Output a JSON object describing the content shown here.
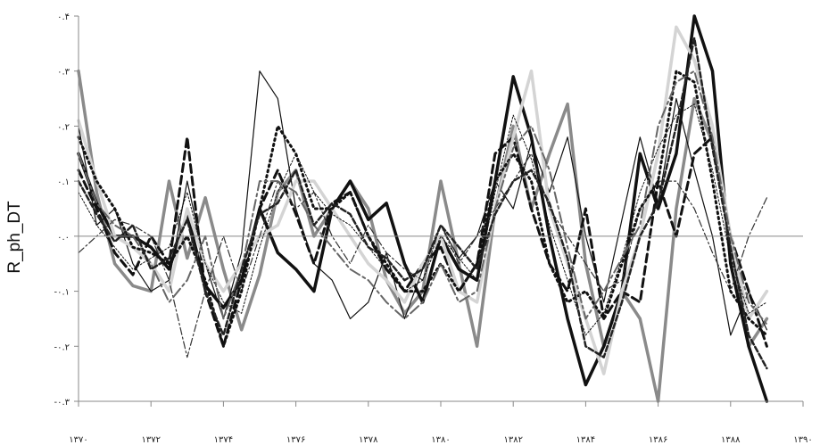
{
  "chart_data": {
    "type": "line",
    "ylabel": "R_ph_DT",
    "xlim": [
      1370,
      1390
    ],
    "ylim": [
      -0.3,
      0.4
    ],
    "x_ticks": [
      "۱۳۷۰",
      "۱۳۷۲",
      "۱۳۷۴",
      "۱۳۷۶",
      "۱۳۷۸",
      "۱۳۸۰",
      "۱۳۸۲",
      "۱۳۸۴",
      "۱۳۸۶",
      "۱۳۸۸",
      "۱۳۹۰"
    ],
    "y_ticks": [
      "-۰.۳",
      "-۰.۲",
      "-۰.۱",
      "۰.۰",
      "۰.۱",
      "۰.۲",
      "۰.۳",
      "۰.۴"
    ],
    "grid": false,
    "zero_line": true,
    "series": [
      {
        "x": [
          1370,
          1370.5,
          1371,
          1371.5,
          1372,
          1372.5,
          1373,
          1373.5,
          1374,
          1374.5,
          1375,
          1375.5,
          1376,
          1376.5,
          1377,
          1377.5,
          1378,
          1378.5,
          1379,
          1379.5,
          1380,
          1380.5,
          1381,
          1381.5,
          1382,
          1382.5,
          1383,
          1383.5,
          1384,
          1384.5,
          1385,
          1385.5,
          1386,
          1386.5,
          1387,
          1387.5,
          1388,
          1388.5,
          1389
        ],
        "y": [
          0.3,
          0.08,
          -0.05,
          -0.09,
          -0.1,
          0.1,
          -0.04,
          0.07,
          -0.06,
          -0.17,
          -0.07,
          0.08,
          0.12,
          0.0,
          0.05,
          0.1,
          0.05,
          -0.08,
          -0.14,
          -0.1,
          0.1,
          -0.05,
          -0.2,
          0.05,
          0.2,
          0.05,
          0.15,
          0.24,
          -0.05,
          -0.2,
          -0.1,
          -0.15,
          -0.3,
          0.05,
          0.25,
          0.17,
          0.0,
          -0.2,
          -0.15
        ],
        "color": "#8a8a8a",
        "width": 3.5,
        "dash": ""
      },
      {
        "x": [
          1370,
          1370.5,
          1371,
          1371.5,
          1372,
          1372.5,
          1373,
          1373.5,
          1374,
          1374.5,
          1375,
          1375.5,
          1376,
          1376.5,
          1377,
          1377.5,
          1378,
          1378.5,
          1379,
          1379.5,
          1380,
          1380.5,
          1381,
          1381.5,
          1382,
          1382.5,
          1383,
          1383.5,
          1384,
          1384.5,
          1385,
          1385.5,
          1386,
          1386.5,
          1387,
          1387.5,
          1388,
          1388.5,
          1389
        ],
        "y": [
          0.15,
          0.06,
          0.0,
          0.0,
          -0.02,
          -0.06,
          0.04,
          -0.09,
          -0.13,
          -0.08,
          0.05,
          -0.03,
          -0.06,
          -0.1,
          0.05,
          0.1,
          0.03,
          0.06,
          -0.05,
          -0.12,
          0.0,
          -0.06,
          -0.08,
          0.1,
          0.29,
          0.18,
          0.0,
          -0.15,
          -0.27,
          -0.2,
          -0.1,
          0.15,
          0.05,
          0.15,
          0.4,
          0.3,
          -0.05,
          -0.2,
          -0.3
        ],
        "color": "#111111",
        "width": 3.5,
        "dash": ""
      },
      {
        "x": [
          1370,
          1370.5,
          1371,
          1371.5,
          1372,
          1372.5,
          1373,
          1373.5,
          1374,
          1374.5,
          1375,
          1375.5,
          1376,
          1376.5,
          1377,
          1377.5,
          1378,
          1378.5,
          1379,
          1379.5,
          1380,
          1380.5,
          1381,
          1381.5,
          1382,
          1382.5,
          1383,
          1383.5,
          1384,
          1384.5,
          1385,
          1385.5,
          1386,
          1386.5,
          1387,
          1387.5,
          1388,
          1388.5,
          1389
        ],
        "y": [
          0.2,
          0.02,
          0.05,
          -0.05,
          -0.1,
          -0.08,
          0.1,
          -0.05,
          -0.15,
          -0.03,
          0.3,
          0.25,
          0.05,
          -0.05,
          -0.08,
          -0.15,
          -0.12,
          -0.03,
          -0.15,
          -0.06,
          0.02,
          -0.04,
          0.0,
          0.1,
          0.05,
          0.17,
          0.08,
          0.18,
          0.0,
          -0.12,
          0.03,
          0.18,
          0.06,
          0.25,
          0.12,
          0.0,
          -0.18,
          -0.1,
          -0.17
        ],
        "color": "#111111",
        "width": 1.2,
        "dash": ""
      },
      {
        "x": [
          1370,
          1370.5,
          1371,
          1371.5,
          1372,
          1372.5,
          1373,
          1373.5,
          1374,
          1374.5,
          1375,
          1375.5,
          1376,
          1376.5,
          1377,
          1377.5,
          1378,
          1378.5,
          1379,
          1379.5,
          1380,
          1380.5,
          1381,
          1381.5,
          1382,
          1382.5,
          1383,
          1383.5,
          1384,
          1384.5,
          1385,
          1385.5,
          1386,
          1386.5,
          1387,
          1387.5,
          1388,
          1388.5,
          1389
        ],
        "y": [
          0.12,
          0.05,
          -0.03,
          -0.07,
          0.0,
          -0.05,
          0.18,
          -0.1,
          -0.2,
          -0.08,
          0.05,
          0.12,
          0.04,
          -0.05,
          0.06,
          0.08,
          0.0,
          -0.06,
          -0.1,
          -0.05,
          -0.02,
          -0.1,
          -0.05,
          0.15,
          0.18,
          0.05,
          -0.05,
          -0.1,
          0.05,
          -0.15,
          -0.1,
          -0.12,
          0.1,
          0.0,
          0.15,
          0.18,
          0.0,
          -0.1,
          -0.2
        ],
        "color": "#111111",
        "width": 3.0,
        "dash": "9,5"
      },
      {
        "x": [
          1370,
          1370.5,
          1371,
          1371.5,
          1372,
          1372.5,
          1373,
          1373.5,
          1374,
          1374.5,
          1375,
          1375.5,
          1376,
          1376.5,
          1377,
          1377.5,
          1378,
          1378.5,
          1379,
          1379.5,
          1380,
          1380.5,
          1381,
          1381.5,
          1382,
          1382.5,
          1383,
          1383.5,
          1384,
          1384.5,
          1385,
          1385.5,
          1386,
          1386.5,
          1387,
          1387.5,
          1388,
          1388.5,
          1389
        ],
        "y": [
          0.21,
          0.1,
          0.0,
          -0.02,
          -0.05,
          -0.1,
          0.05,
          -0.05,
          -0.1,
          -0.05,
          0.0,
          0.02,
          0.1,
          0.1,
          0.05,
          0.0,
          -0.05,
          -0.08,
          -0.12,
          -0.05,
          0.0,
          -0.1,
          -0.12,
          0.05,
          0.18,
          0.3,
          0.05,
          -0.05,
          -0.15,
          -0.25,
          -0.1,
          0.0,
          0.15,
          0.38,
          0.32,
          0.2,
          0.0,
          -0.15,
          -0.1
        ],
        "color": "#d4d4d4",
        "width": 3.5,
        "dash": ""
      },
      {
        "x": [
          1370,
          1370.5,
          1371,
          1371.5,
          1372,
          1372.5,
          1373,
          1373.5,
          1374,
          1374.5,
          1375,
          1375.5,
          1376,
          1376.5,
          1377,
          1377.5,
          1378,
          1378.5,
          1379,
          1379.5,
          1380,
          1380.5,
          1381,
          1381.5,
          1382,
          1382.5,
          1383,
          1383.5,
          1384,
          1384.5,
          1385,
          1385.5,
          1386,
          1386.5,
          1387,
          1387.5,
          1388,
          1388.5,
          1389
        ],
        "y": [
          -0.03,
          0.0,
          0.03,
          0.02,
          0.0,
          -0.08,
          -0.22,
          -0.1,
          0.0,
          -0.1,
          0.0,
          0.1,
          0.05,
          0.08,
          0.0,
          -0.05,
          0.02,
          -0.03,
          -0.06,
          -0.08,
          0.02,
          -0.05,
          0.0,
          0.05,
          0.1,
          0.15,
          0.05,
          0.0,
          -0.05,
          -0.1,
          -0.08,
          0.05,
          0.1,
          0.1,
          0.05,
          -0.03,
          -0.1,
          0.0,
          0.07
        ],
        "color": "#333333",
        "width": 1.2,
        "dash": "8,3,2,3"
      },
      {
        "x": [
          1370,
          1370.5,
          1371,
          1371.5,
          1372,
          1372.5,
          1373,
          1373.5,
          1374,
          1374.5,
          1375,
          1375.5,
          1376,
          1376.5,
          1377,
          1377.5,
          1378,
          1378.5,
          1379,
          1379.5,
          1380,
          1380.5,
          1381,
          1381.5,
          1382,
          1382.5,
          1383,
          1383.5,
          1384,
          1384.5,
          1385,
          1385.5,
          1386,
          1386.5,
          1387,
          1387.5,
          1388,
          1388.5,
          1389
        ],
        "y": [
          0.18,
          0.1,
          0.05,
          -0.02,
          -0.03,
          -0.05,
          0.0,
          -0.08,
          -0.2,
          -0.1,
          0.05,
          0.2,
          0.15,
          0.05,
          0.05,
          0.08,
          0.0,
          -0.05,
          -0.1,
          -0.1,
          -0.05,
          -0.1,
          -0.05,
          0.1,
          0.15,
          0.1,
          -0.05,
          -0.12,
          -0.1,
          -0.15,
          -0.05,
          0.05,
          0.1,
          0.3,
          0.28,
          0.1,
          -0.1,
          -0.15,
          -0.18
        ],
        "color": "#111111",
        "width": 3.0,
        "dash": "2,4"
      },
      {
        "x": [
          1370,
          1370.5,
          1371,
          1371.5,
          1372,
          1372.5,
          1373,
          1373.5,
          1374,
          1374.5,
          1375,
          1375.5,
          1376,
          1376.5,
          1377,
          1377.5,
          1378,
          1378.5,
          1379,
          1379.5,
          1380,
          1380.5,
          1381,
          1381.5,
          1382,
          1382.5,
          1383,
          1383.5,
          1384,
          1384.5,
          1385,
          1385.5,
          1386,
          1386.5,
          1387,
          1387.5,
          1388,
          1388.5,
          1389
        ],
        "y": [
          0.08,
          0.02,
          -0.02,
          -0.06,
          -0.04,
          -0.02,
          0.08,
          -0.05,
          -0.12,
          -0.14,
          -0.02,
          0.08,
          0.15,
          0.08,
          0.04,
          0.02,
          -0.02,
          -0.06,
          -0.1,
          -0.08,
          0.0,
          -0.04,
          -0.08,
          0.08,
          0.22,
          0.14,
          0.02,
          -0.08,
          -0.18,
          -0.14,
          -0.04,
          0.08,
          0.16,
          0.22,
          0.24,
          0.12,
          -0.04,
          -0.14,
          -0.12
        ],
        "color": "#111111",
        "width": 1.0,
        "dash": "2,2"
      },
      {
        "x": [
          1370,
          1370.5,
          1371,
          1371.5,
          1372,
          1372.5,
          1373,
          1373.5,
          1374,
          1374.5,
          1375,
          1375.5,
          1376,
          1376.5,
          1377,
          1377.5,
          1378,
          1378.5,
          1379,
          1379.5,
          1380,
          1380.5,
          1381,
          1381.5,
          1382,
          1382.5,
          1383,
          1383.5,
          1384,
          1384.5,
          1385,
          1385.5,
          1386,
          1386.5,
          1387,
          1387.5,
          1388,
          1388.5,
          1389
        ],
        "y": [
          0.15,
          0.06,
          0.02,
          0.0,
          -0.05,
          -0.12,
          -0.08,
          0.0,
          -0.15,
          -0.06,
          0.1,
          0.1,
          0.08,
          0.02,
          -0.02,
          -0.06,
          -0.08,
          -0.12,
          -0.15,
          -0.12,
          -0.05,
          -0.12,
          -0.1,
          0.05,
          0.16,
          0.2,
          0.12,
          -0.02,
          -0.15,
          -0.1,
          -0.04,
          0.02,
          0.2,
          0.28,
          0.3,
          0.18,
          0.0,
          -0.12,
          -0.16
        ],
        "color": "#666666",
        "width": 2.0,
        "dash": "12,4,3,4"
      },
      {
        "x": [
          1370,
          1370.5,
          1371,
          1371.5,
          1372,
          1372.5,
          1373,
          1373.5,
          1374,
          1374.5,
          1375,
          1375.5,
          1376,
          1376.5,
          1377,
          1377.5,
          1378,
          1378.5,
          1379,
          1379.5,
          1380,
          1380.5,
          1381,
          1381.5,
          1382,
          1382.5,
          1383,
          1383.5,
          1384,
          1384.5,
          1385,
          1385.5,
          1386,
          1386.5,
          1387,
          1387.5,
          1388,
          1388.5,
          1389
        ],
        "y": [
          0.1,
          0.04,
          -0.01,
          0.02,
          -0.06,
          -0.04,
          0.03,
          -0.1,
          -0.18,
          -0.06,
          0.04,
          0.06,
          0.12,
          0.02,
          0.06,
          0.04,
          -0.02,
          -0.04,
          -0.08,
          -0.06,
          0.02,
          -0.02,
          -0.06,
          0.04,
          0.1,
          0.12,
          0.06,
          -0.04,
          -0.2,
          -0.22,
          -0.12,
          0.0,
          0.06,
          0.2,
          0.36,
          0.16,
          -0.02,
          -0.18,
          -0.24
        ],
        "color": "#222222",
        "width": 2.5,
        "dash": "6,3"
      }
    ]
  }
}
